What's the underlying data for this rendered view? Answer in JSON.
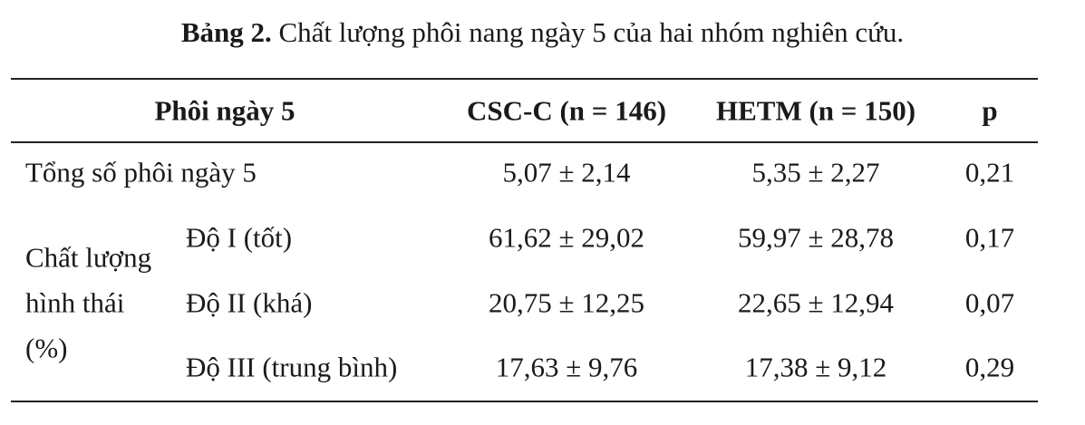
{
  "title": {
    "label": "Bảng 2.",
    "text": "Chất lượng phôi nang ngày 5 của hai nhóm nghiên cứu."
  },
  "table": {
    "header": [
      "Phôi ngày 5",
      "CSC-C (n = 146)",
      "HETM (n = 150)",
      "p"
    ],
    "rows": [
      [
        "Tổng số phôi ngày 5",
        "5,07 ± 2,14",
        "5,35 ± 2,27",
        "0,21"
      ]
    ],
    "group": {
      "label": [
        "Chất lượng",
        "hình thái",
        "(%)"
      ],
      "rows": [
        [
          "Độ I (tốt)",
          "61,62 ± 29,02",
          "59,97 ± 28,78",
          "0,17"
        ],
        [
          "Độ II (khá)",
          "20,75 ± 12,25",
          "22,65 ± 12,94",
          "0,07"
        ],
        [
          "Độ III (trung bình)",
          "17,63 ± 9,76",
          "17,38 ± 9,12",
          "0,29"
        ]
      ]
    }
  }
}
